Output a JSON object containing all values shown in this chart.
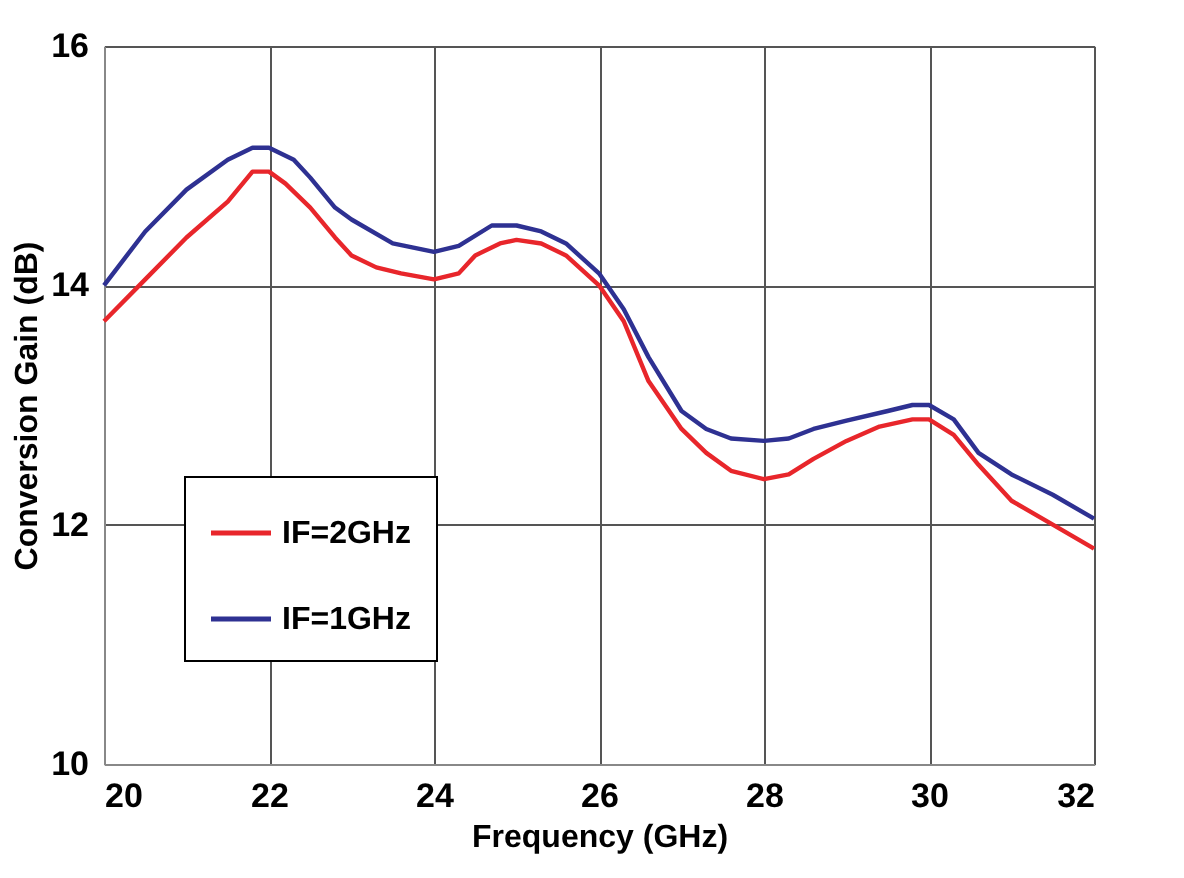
{
  "chart_data": {
    "type": "line",
    "xlabel": "Frequency (GHz)",
    "ylabel": "Conversion Gain (dB)",
    "xlim": [
      20,
      32
    ],
    "ylim": [
      10,
      16
    ],
    "xticks": [
      20,
      22,
      24,
      26,
      28,
      30,
      32
    ],
    "yticks": [
      10,
      12,
      14,
      16
    ],
    "grid": true,
    "legend": "bottom left",
    "line_style": "solid",
    "marker": "none",
    "series": [
      {
        "name": "IF=2GHz",
        "color": "#e8262b",
        "x": [
          20,
          20.5,
          21,
          21.5,
          21.8,
          22,
          22.2,
          22.5,
          22.8,
          23,
          23.3,
          23.6,
          24,
          24.3,
          24.5,
          24.8,
          25,
          25.3,
          25.6,
          26,
          26.3,
          26.6,
          27,
          27.3,
          27.6,
          28,
          28.3,
          28.6,
          29,
          29.4,
          29.8,
          30,
          30.3,
          30.6,
          31,
          31.5,
          32
        ],
        "values": [
          13.7,
          14.05,
          14.4,
          14.7,
          14.95,
          14.95,
          14.85,
          14.65,
          14.4,
          14.25,
          14.15,
          14.1,
          14.05,
          14.1,
          14.25,
          14.35,
          14.38,
          14.35,
          14.25,
          14.0,
          13.7,
          13.2,
          12.8,
          12.6,
          12.45,
          12.38,
          12.42,
          12.55,
          12.7,
          12.82,
          12.88,
          12.88,
          12.75,
          12.5,
          12.2,
          12.0,
          11.8
        ]
      },
      {
        "name": "IF=1GHz",
        "color": "#2e3192",
        "x": [
          20,
          20.5,
          21,
          21.5,
          21.8,
          22,
          22.3,
          22.5,
          22.8,
          23,
          23.5,
          24,
          24.3,
          24.7,
          25,
          25.3,
          25.6,
          26,
          26.3,
          26.6,
          27,
          27.3,
          27.6,
          28,
          28.3,
          28.6,
          29,
          29.5,
          29.8,
          30,
          30.3,
          30.6,
          31,
          31.5,
          32
        ],
        "values": [
          14.0,
          14.45,
          14.8,
          15.05,
          15.15,
          15.15,
          15.05,
          14.9,
          14.65,
          14.55,
          14.35,
          14.28,
          14.33,
          14.5,
          14.5,
          14.45,
          14.35,
          14.1,
          13.8,
          13.4,
          12.95,
          12.8,
          12.72,
          12.7,
          12.72,
          12.8,
          12.87,
          12.95,
          13.0,
          13.0,
          12.88,
          12.6,
          12.42,
          12.25,
          12.05
        ]
      }
    ]
  }
}
